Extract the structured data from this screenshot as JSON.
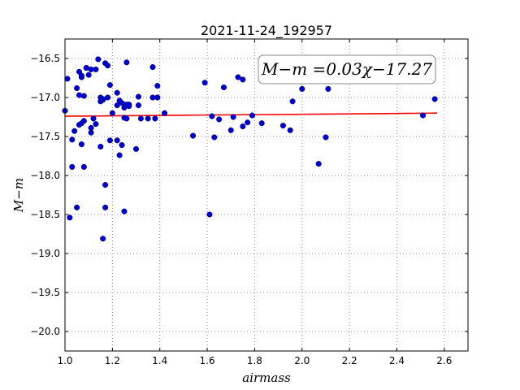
{
  "chart_data": {
    "type": "scatter",
    "title": "2021-11-24_192957",
    "xlabel": "airmass",
    "ylabel": "M−m",
    "xlim": [
      1.0,
      2.7
    ],
    "ylim": [
      -16.25,
      -20.25
    ],
    "y_inverted": true,
    "grid": true,
    "grid_style": "dotted",
    "xticks": [
      "1.0",
      "1.2",
      "1.4",
      "1.6",
      "1.8",
      "2.0",
      "2.2",
      "2.4",
      "2.6"
    ],
    "yticks": [
      "−16.5",
      "−17.0",
      "−17.5",
      "−18.0",
      "−18.5",
      "−19.0",
      "−19.5",
      "−20.0"
    ],
    "annotation": "M−m =0.03χ−17.27",
    "colors": {
      "points": "#0000cc",
      "fit": "#ff0000",
      "grid": "#888888"
    },
    "series": [
      {
        "x": [
          1.0,
          1.01,
          1.02,
          1.03,
          1.03,
          1.04,
          1.05,
          1.05,
          1.06,
          1.06,
          1.06,
          1.07,
          1.07,
          1.07,
          1.07,
          1.08,
          1.08,
          1.08,
          1.09,
          1.09,
          1.1,
          1.11,
          1.11,
          1.11,
          1.12,
          1.13,
          1.13,
          1.14,
          1.15,
          1.15,
          1.15,
          1.16,
          1.16,
          1.16,
          1.17,
          1.17,
          1.17,
          1.18,
          1.18,
          1.19,
          1.19,
          1.2,
          1.22,
          1.22,
          1.22,
          1.23,
          1.23,
          1.24,
          1.24,
          1.25,
          1.25,
          1.25,
          1.26,
          1.26,
          1.26,
          1.27,
          1.27,
          1.3,
          1.31,
          1.31,
          1.32,
          1.35,
          1.37,
          1.37,
          1.38,
          1.39,
          1.39,
          1.39,
          1.42,
          1.54,
          1.59,
          1.61,
          1.62,
          1.63,
          1.65,
          1.67,
          1.7,
          1.71,
          1.73,
          1.75,
          1.75,
          1.77,
          1.79,
          1.83,
          1.92,
          1.95,
          1.96,
          2.0,
          2.07,
          2.1,
          2.11,
          2.51,
          2.56
        ],
        "y": [
          -17.17,
          -16.76,
          -18.54,
          -17.54,
          -17.89,
          -17.43,
          -16.88,
          -18.41,
          -16.67,
          -16.97,
          -17.35,
          -16.74,
          -17.33,
          -17.6,
          -16.72,
          -16.98,
          -17.3,
          -17.89,
          -16.62,
          -16.62,
          -16.71,
          -17.39,
          -16.64,
          -17.45,
          -17.27,
          -17.34,
          -16.64,
          -16.51,
          -17.0,
          -17.05,
          -17.63,
          -18.81,
          -17.03,
          -17.02,
          -16.56,
          -18.41,
          -18.12,
          -16.59,
          -17.0,
          -16.84,
          -17.55,
          -17.2,
          -17.1,
          -17.55,
          -16.94,
          -17.74,
          -17.04,
          -17.07,
          -17.61,
          -17.26,
          -17.13,
          -18.46,
          -17.09,
          -17.27,
          -16.55,
          -17.09,
          -17.11,
          -17.66,
          -16.99,
          -17.1,
          -17.27,
          -17.27,
          -16.61,
          -17.0,
          -17.27,
          -16.85,
          -17.0,
          -17.0,
          -17.2,
          -17.49,
          -16.81,
          -18.5,
          -17.24,
          -17.51,
          -17.28,
          -16.87,
          -17.42,
          -17.25,
          -16.74,
          -16.77,
          -17.37,
          -17.32,
          -17.23,
          -17.33,
          -17.36,
          -17.42,
          -17.05,
          -16.89,
          -17.85,
          -17.51,
          -16.89,
          -17.23,
          -17.02
        ]
      },
      {
        "type": "line",
        "x": [
          1.0,
          1.2,
          1.4,
          1.6,
          1.8,
          2.0,
          2.2,
          2.4,
          2.57
        ],
        "y": [
          -17.24,
          -17.235,
          -17.23,
          -17.225,
          -17.22,
          -17.215,
          -17.21,
          -17.205,
          -17.2
        ]
      }
    ]
  }
}
